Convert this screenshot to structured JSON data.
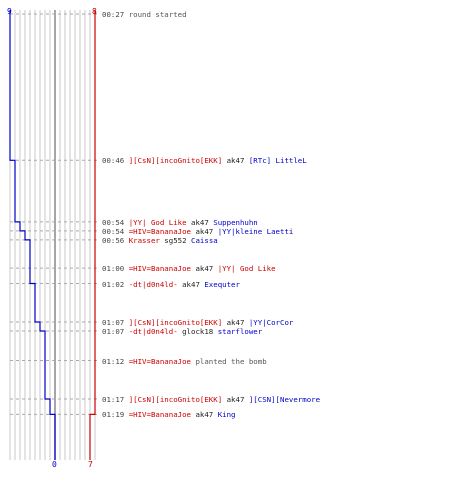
{
  "chart_data": {
    "type": "line",
    "title": "",
    "xlabel": "",
    "ylabel": "",
    "colors": {
      "team_a": "#0000cc",
      "team_b": "#cc0000",
      "grid": "#999999"
    },
    "axis_labels": {
      "blue_top": "9",
      "red_top": "8",
      "blue_bottom": "0",
      "red_bottom": "7"
    },
    "series": [
      {
        "team": "blue",
        "times": [
          "00:27",
          "00:46",
          "00:54",
          "00:54",
          "00:56",
          "01:00",
          "01:02",
          "01:07",
          "01:07",
          "01:12",
          "01:17",
          "01:19"
        ],
        "alive": [
          9,
          8,
          7,
          6,
          5,
          5,
          4,
          3,
          2,
          2,
          1,
          0
        ]
      },
      {
        "team": "red",
        "times": [
          "00:27",
          "01:19"
        ],
        "alive": [
          8,
          7
        ]
      }
    ]
  },
  "events": [
    {
      "time": "00:27",
      "parts": [
        {
          "text": "round started",
          "cls": "msg"
        }
      ]
    },
    {
      "time": "00:46",
      "parts": [
        {
          "text": "][CsN][incoGnito[EKK]",
          "cls": "red"
        },
        {
          "text": " ak47 ",
          "cls": "plain"
        },
        {
          "text": "[RTc] LittleL",
          "cls": "blue"
        }
      ]
    },
    {
      "time": "00:54",
      "parts": [
        {
          "text": "|YY| God Like",
          "cls": "red"
        },
        {
          "text": " ak47 ",
          "cls": "plain"
        },
        {
          "text": "Suppenhuhn",
          "cls": "blue"
        }
      ]
    },
    {
      "time": "00:54",
      "parts": [
        {
          "text": "=HIV=BananaJoe",
          "cls": "red"
        },
        {
          "text": " ak47 ",
          "cls": "plain"
        },
        {
          "text": "|YY|kleine Laetti",
          "cls": "blue"
        }
      ]
    },
    {
      "time": "00:56",
      "parts": [
        {
          "text": "Krasser",
          "cls": "red"
        },
        {
          "text": " sg552 ",
          "cls": "plain"
        },
        {
          "text": "Caissa",
          "cls": "blue"
        }
      ]
    },
    {
      "time": "01:00",
      "parts": [
        {
          "text": "=HIV=BananaJoe",
          "cls": "red"
        },
        {
          "text": " ak47 ",
          "cls": "plain"
        },
        {
          "text": "|YY| God Like",
          "cls": "red"
        }
      ]
    },
    {
      "time": "01:02",
      "parts": [
        {
          "text": "-dt|d0n4ld-",
          "cls": "red"
        },
        {
          "text": " ak47 ",
          "cls": "plain"
        },
        {
          "text": "Exequter",
          "cls": "blue"
        }
      ]
    },
    {
      "time": "01:07",
      "parts": [
        {
          "text": "][CsN][incoGnito[EKK]",
          "cls": "red"
        },
        {
          "text": " ak47 ",
          "cls": "plain"
        },
        {
          "text": "|YY|CorCor",
          "cls": "blue"
        }
      ]
    },
    {
      "time": "01:07",
      "parts": [
        {
          "text": "-dt|d0n4ld-",
          "cls": "red"
        },
        {
          "text": " glock18 ",
          "cls": "plain"
        },
        {
          "text": "starflower",
          "cls": "blue"
        }
      ]
    },
    {
      "time": "01:12",
      "parts": [
        {
          "text": "=HIV=BananaJoe",
          "cls": "red"
        },
        {
          "text": " planted the bomb",
          "cls": "msg"
        }
      ]
    },
    {
      "time": "01:17",
      "parts": [
        {
          "text": "][CsN][incoGnito[EKK]",
          "cls": "red"
        },
        {
          "text": " ak47 ",
          "cls": "plain"
        },
        {
          "text": "][CSN][Nevermore",
          "cls": "blue"
        }
      ]
    },
    {
      "time": "01:19",
      "parts": [
        {
          "text": "=HIV=BananaJoe",
          "cls": "red"
        },
        {
          "text": " ak47 ",
          "cls": "plain"
        },
        {
          "text": "King",
          "cls": "blue"
        }
      ]
    }
  ]
}
